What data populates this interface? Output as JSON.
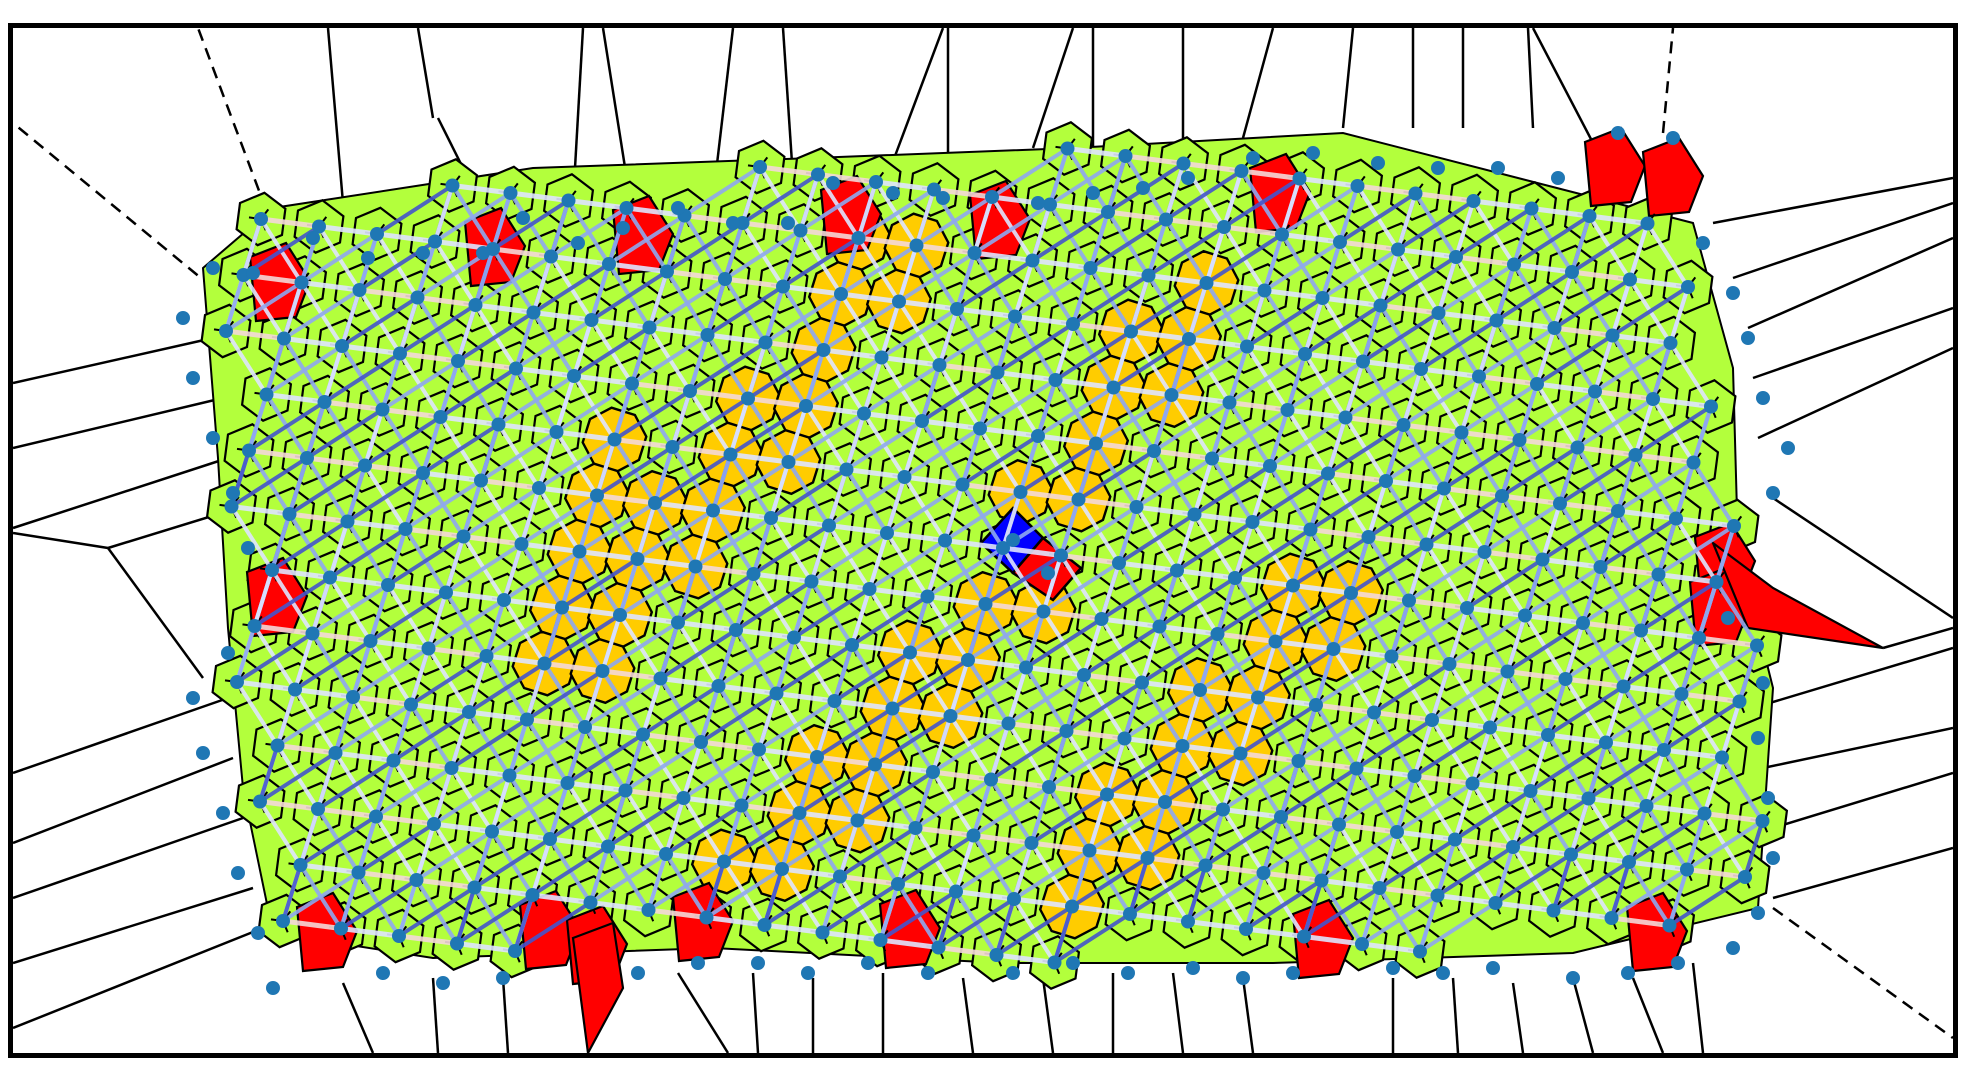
{
  "diagram": {
    "kind": "voronoi-lattice-with-defects",
    "colors": {
      "background": "#ffffff",
      "border": "#000000",
      "hexagonal_cell": "#b3ff3c",
      "square_cell": "#ffcc00",
      "boundary_defect_cell": "#ff0000",
      "center_defect_cell": "#0000ff",
      "cell_edge": "#000000",
      "site_point": "#1f77b4",
      "bond_strong": "#4455cc",
      "bond_medium": "#8fa8f0",
      "bond_weak": "#dfe5ff",
      "bond_warm": "#f4d9d9"
    },
    "legend": null
  }
}
